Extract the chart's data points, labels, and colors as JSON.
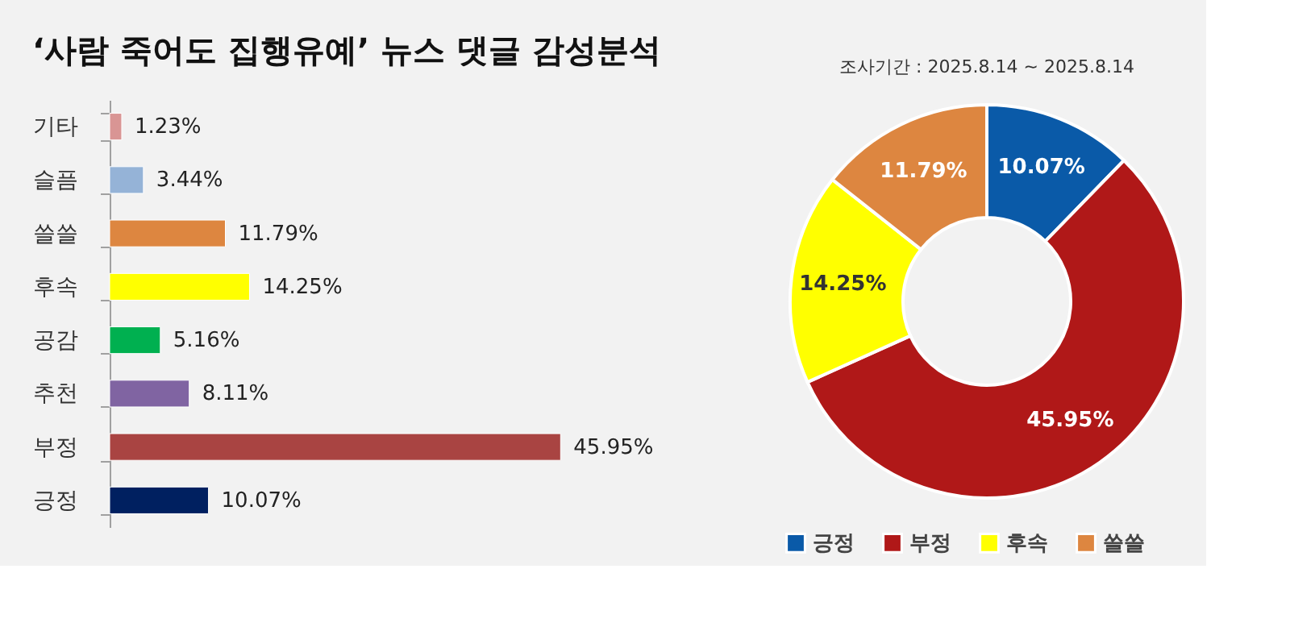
{
  "chart_data": [
    {
      "type": "bar",
      "orientation": "horizontal",
      "title": "‘사람 죽어도 집행유예’ 뉴스 댓글 감성분석",
      "categories": [
        "기타",
        "슬픔",
        "쓸쓸",
        "후속",
        "공감",
        "추천",
        "부정",
        "긍정"
      ],
      "values": [
        1.23,
        3.44,
        11.79,
        14.25,
        5.16,
        8.11,
        45.95,
        10.07
      ],
      "colors": [
        "#d99594",
        "#95b3d7",
        "#dd8640",
        "#ffff00",
        "#00b050",
        "#8064a2",
        "#a94442",
        "#002060"
      ],
      "value_labels": [
        "1.23%",
        "3.44%",
        "11.79%",
        "14.25%",
        "5.16%",
        "8.11%",
        "45.95%",
        "10.07%"
      ],
      "tick_labels": "y"
    },
    {
      "type": "donut",
      "annotations": [
        "조사기간 : 2025.8.14 ~ 2025.8.14"
      ],
      "categories": [
        "긍정",
        "부정",
        "후속",
        "쓸쓸"
      ],
      "values": [
        10.07,
        45.95,
        14.25,
        11.79
      ],
      "colors": [
        "#0a5aa8",
        "#b01818",
        "#ffff00",
        "#dd8640"
      ],
      "value_labels": [
        "10.07%",
        "45.95%",
        "14.25%",
        "11.79%"
      ],
      "legend": "bottom"
    }
  ]
}
